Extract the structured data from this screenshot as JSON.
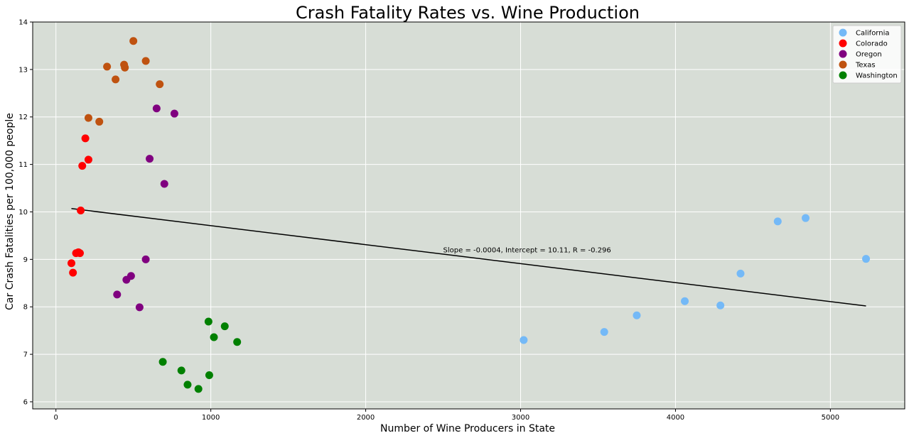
{
  "chart_data": {
    "type": "scatter",
    "title": "Crash Fatality Rates vs. Wine Production",
    "xlabel": "Number of Wine Producers in State",
    "ylabel": "Car Crash Fatalities per 100,000 people",
    "xlim": [
      -150,
      5480
    ],
    "ylim": [
      5.85,
      14
    ],
    "xticks": [
      0,
      1000,
      2000,
      3000,
      4000,
      5000
    ],
    "yticks": [
      6,
      7,
      8,
      9,
      10,
      11,
      12,
      13,
      14
    ],
    "grid": true,
    "legend_position": "top-right",
    "series": [
      {
        "name": "California",
        "color": "#74b9f7",
        "points": [
          [
            3020,
            7.3
          ],
          [
            3540,
            7.47
          ],
          [
            3750,
            7.82
          ],
          [
            4060,
            8.12
          ],
          [
            4290,
            8.03
          ],
          [
            4420,
            8.7
          ],
          [
            4660,
            9.8
          ],
          [
            4840,
            9.87
          ],
          [
            5230,
            9.01
          ]
        ]
      },
      {
        "name": "Colorado",
        "color": "#ff0000",
        "points": [
          [
            100,
            8.92
          ],
          [
            110,
            8.72
          ],
          [
            130,
            9.13
          ],
          [
            145,
            9.15
          ],
          [
            155,
            9.13
          ],
          [
            160,
            10.03
          ],
          [
            170,
            10.97
          ],
          [
            190,
            11.55
          ],
          [
            210,
            11.1
          ]
        ]
      },
      {
        "name": "Oregon",
        "color": "#800080",
        "points": [
          [
            395,
            8.26
          ],
          [
            455,
            8.57
          ],
          [
            485,
            8.65
          ],
          [
            540,
            7.99
          ],
          [
            580,
            9.0
          ],
          [
            605,
            11.12
          ],
          [
            650,
            12.18
          ],
          [
            700,
            10.59
          ],
          [
            765,
            12.07
          ]
        ]
      },
      {
        "name": "Texas",
        "color": "#bf5210",
        "points": [
          [
            210,
            11.98
          ],
          [
            280,
            11.9
          ],
          [
            330,
            13.06
          ],
          [
            385,
            12.79
          ],
          [
            440,
            13.1
          ],
          [
            445,
            13.04
          ],
          [
            500,
            13.6
          ],
          [
            580,
            13.18
          ],
          [
            670,
            12.69
          ]
        ]
      },
      {
        "name": "Washington",
        "color": "#008000",
        "points": [
          [
            690,
            6.84
          ],
          [
            810,
            6.66
          ],
          [
            850,
            6.36
          ],
          [
            920,
            6.27
          ],
          [
            985,
            7.69
          ],
          [
            990,
            6.56
          ],
          [
            1020,
            7.36
          ],
          [
            1090,
            7.59
          ],
          [
            1170,
            7.26
          ]
        ]
      }
    ],
    "regression": {
      "slope": -0.0004,
      "intercept": 10.11,
      "x_range": [
        100,
        5230
      ],
      "color": "#000000",
      "label": "Slope = -0.0004, Intercept = 10.11, R = -0.296",
      "label_pos": [
        2500,
        9.15
      ]
    }
  }
}
